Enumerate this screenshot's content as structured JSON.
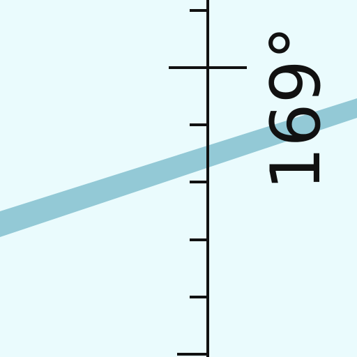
{
  "map": {
    "background_color": "#eafbfd",
    "line_color": "#111111",
    "route_color": "#93c9d6",
    "degree_label": "169°"
  }
}
